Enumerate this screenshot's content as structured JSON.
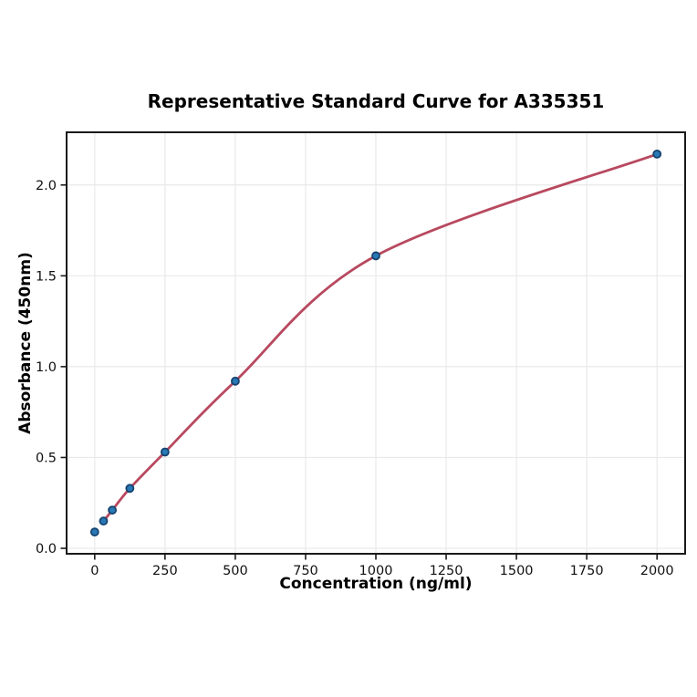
{
  "chart_data": {
    "type": "scatter",
    "title": "Representative Standard Curve for A335351",
    "xlabel": "Concentration (ng/ml)",
    "ylabel": "Absorbance (450nm)",
    "series": [
      {
        "name": "standards",
        "style": "points",
        "x": [
          0,
          31.25,
          62.5,
          125,
          250,
          500,
          1000,
          2000
        ],
        "y": [
          0.09,
          0.15,
          0.21,
          0.33,
          0.53,
          0.92,
          1.61,
          2.17
        ]
      },
      {
        "name": "fit-curve",
        "style": "smooth-line",
        "note": "4PL standard-curve fit drawn from first non-zero standard to 2000",
        "from_x": 31.25,
        "to_x": 2000
      }
    ],
    "xlim": [
      -100,
      2100
    ],
    "ylim": [
      -0.03,
      2.29
    ],
    "xtick_values": [
      0,
      250,
      500,
      750,
      1000,
      1250,
      1500,
      1750,
      2000
    ],
    "xtick_labels": [
      "0",
      "250",
      "500",
      "750",
      "1000",
      "1250",
      "1500",
      "1750",
      "2000"
    ],
    "ytick_values": [
      0,
      0.5,
      1,
      1.5,
      2
    ],
    "ytick_labels": [
      "0.0",
      "0.5",
      "1.0",
      "1.5",
      "2.0"
    ],
    "grid": true,
    "legend": "none",
    "colors": {
      "point_fill": "#2878b5",
      "point_edge": "#16436f",
      "curve": "#b8495f",
      "grid": "#e9e9e9",
      "spine": "#1a1a1a",
      "tick_text": "#111111",
      "background": "#ffffff"
    }
  }
}
